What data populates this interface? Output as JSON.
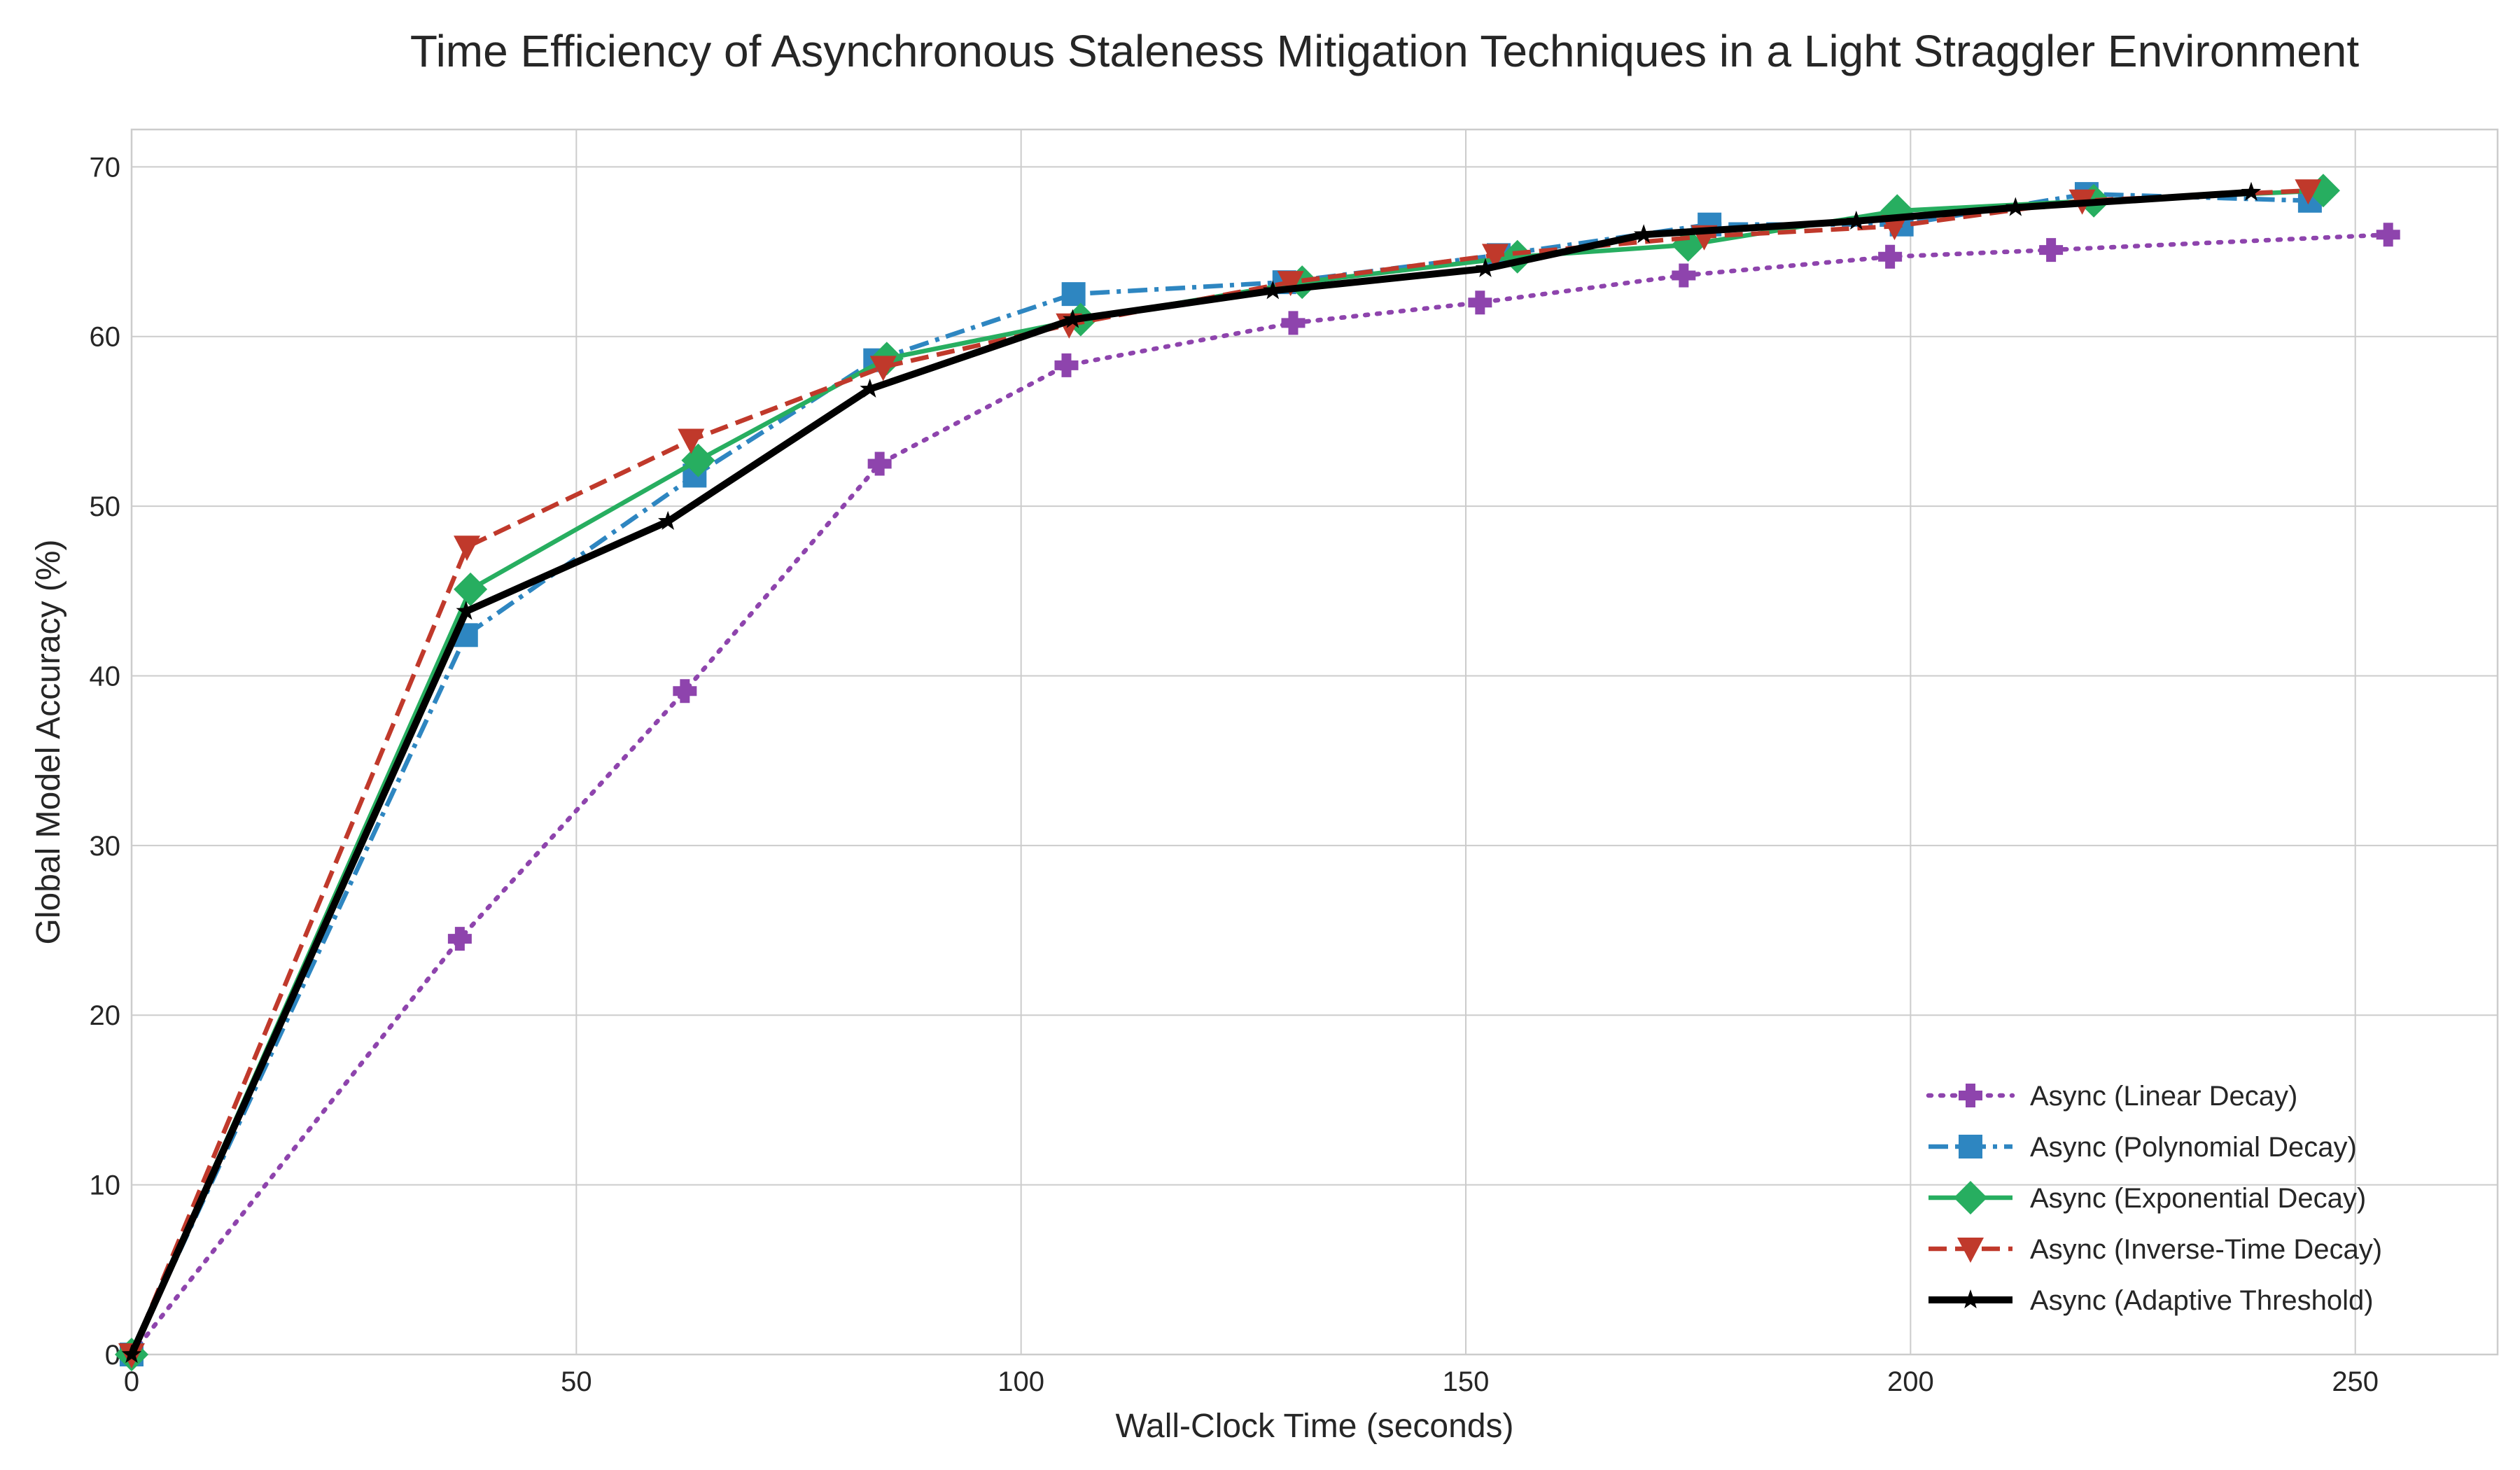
{
  "chart_data": {
    "type": "line",
    "title": "Time Efficiency of Asynchronous Staleness Mitigation Techniques in a Light Straggler Environment",
    "xlabel": "Wall-Clock Time (seconds)",
    "ylabel": "Global Model Accuracy (%)",
    "xlim": [
      0,
      266
    ],
    "ylim": [
      0,
      72.2
    ],
    "xticks": [
      0,
      50,
      100,
      150,
      200,
      250
    ],
    "yticks": [
      0,
      10,
      20,
      30,
      40,
      50,
      60,
      70
    ],
    "grid": true,
    "legend_position": "lower-right",
    "series": [
      {
        "name": "Async (Linear Decay)",
        "color": "#8e44ad",
        "line_style": "dotted",
        "marker": "plus",
        "points": [
          [
            0,
            0
          ],
          [
            36.9,
            24.5
          ],
          [
            62.2,
            39.1
          ],
          [
            84.1,
            52.5
          ],
          [
            105.1,
            58.3
          ],
          [
            130.6,
            60.8
          ],
          [
            151.6,
            62.0
          ],
          [
            174.5,
            63.6
          ],
          [
            197.7,
            64.7
          ],
          [
            215.8,
            65.1
          ],
          [
            253.7,
            66.0
          ]
        ]
      },
      {
        "name": "Async (Polynomial Decay)",
        "color": "#2e86c1",
        "line_style": "dashdot",
        "marker": "square",
        "points": [
          [
            0,
            0
          ],
          [
            37.6,
            42.4
          ],
          [
            63.3,
            51.8
          ],
          [
            83.6,
            58.6
          ],
          [
            105.9,
            62.5
          ],
          [
            129.6,
            63.2
          ],
          [
            153.7,
            64.8
          ],
          [
            177.4,
            66.6
          ],
          [
            199.0,
            66.6
          ],
          [
            219.8,
            68.4
          ],
          [
            244.9,
            68.0
          ]
        ]
      },
      {
        "name": "Async (Exponential Decay)",
        "color": "#27ae60",
        "line_style": "solid",
        "marker": "diamond",
        "points": [
          [
            0,
            0
          ],
          [
            38.1,
            45.1
          ],
          [
            63.7,
            52.7
          ],
          [
            84.9,
            58.7
          ],
          [
            106.7,
            61.0
          ],
          [
            131.6,
            63.2
          ],
          [
            155.8,
            64.7
          ],
          [
            175.0,
            65.4
          ],
          [
            198.5,
            67.4
          ],
          [
            220.6,
            68.0
          ],
          [
            246.4,
            68.6
          ]
        ]
      },
      {
        "name": "Async (Inverse-Time Decay)",
        "color": "#c0392b",
        "line_style": "dashed",
        "marker": "triangle-down",
        "points": [
          [
            0,
            0
          ],
          [
            37.7,
            47.6
          ],
          [
            62.9,
            53.9
          ],
          [
            84.5,
            58.2
          ],
          [
            105.4,
            60.7
          ],
          [
            130.3,
            63.2
          ],
          [
            153.3,
            64.8
          ],
          [
            176.8,
            65.9
          ],
          [
            198.2,
            66.5
          ],
          [
            219.3,
            68.0
          ],
          [
            244.7,
            68.6
          ]
        ]
      },
      {
        "name": "Async (Adaptive Threshold)",
        "color": "#000000",
        "line_style": "solid-thick",
        "marker": "star",
        "points": [
          [
            0,
            0
          ],
          [
            37.6,
            43.8
          ],
          [
            60.3,
            49.1
          ],
          [
            83.0,
            56.9
          ],
          [
            105.8,
            61.0
          ],
          [
            128.3,
            62.7
          ],
          [
            152.2,
            64.0
          ],
          [
            170.0,
            66.0
          ],
          [
            193.9,
            66.8
          ],
          [
            211.8,
            67.6
          ],
          [
            238.3,
            68.5
          ]
        ]
      }
    ]
  }
}
